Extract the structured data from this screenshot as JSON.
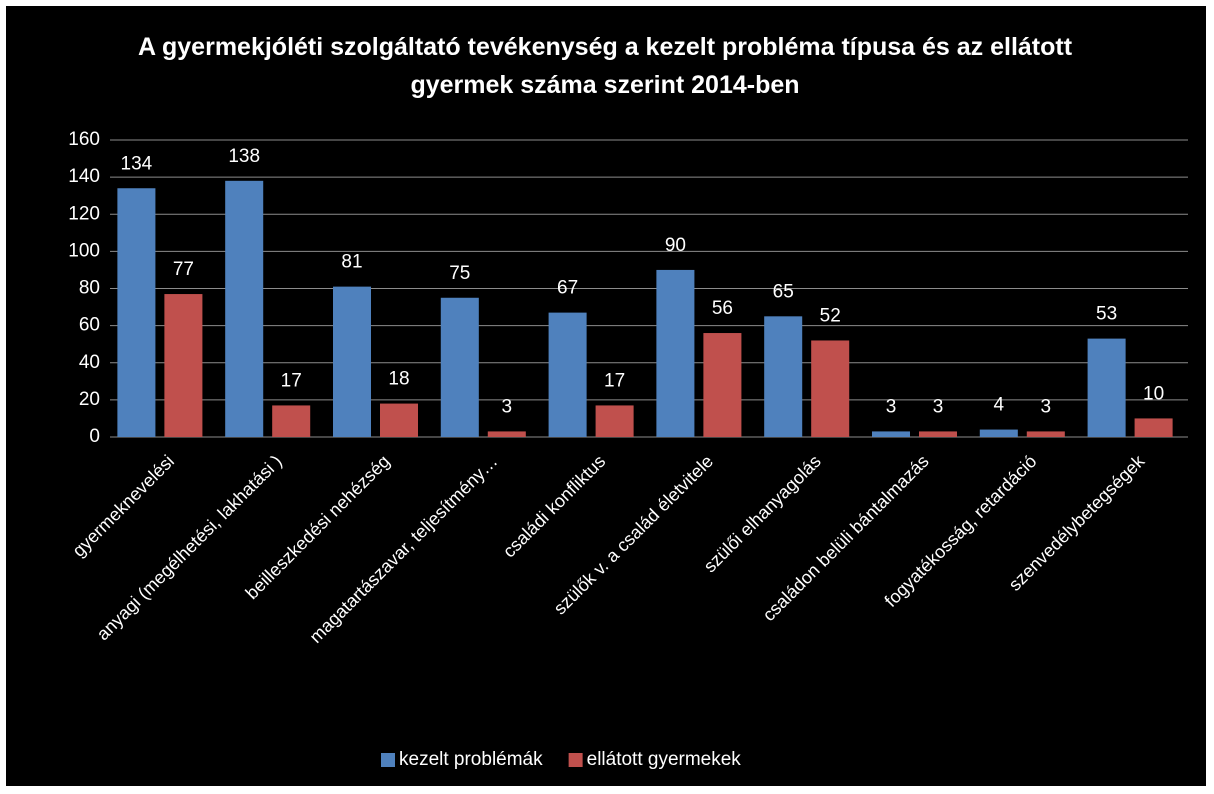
{
  "chart_data": {
    "type": "bar",
    "title": "A gyermekjóléti szolgáltató tevékenység a kezelt probléma típusa és az ellátott gyermek száma szerint  2014-ben",
    "categories": [
      "gyermeknevelési",
      "anyagi (megélhetési, lakhatási )",
      "beilleszkedési nehézség",
      "magatartászavar, teljesítmény…",
      "családi konfliktus",
      "szülők v. a család életvitele",
      "szülői elhanyagolás",
      "családon belüli bántalmazás",
      "fogyatékosság, retardáció",
      "szenvedélybetegségek"
    ],
    "series": [
      {
        "name": "kezelt problémák",
        "color": "#4f81bd",
        "values": [
          134,
          138,
          81,
          75,
          67,
          90,
          65,
          3,
          4,
          53
        ]
      },
      {
        "name": "ellátott gyermekek",
        "color": "#c0504d",
        "values": [
          77,
          17,
          18,
          3,
          17,
          56,
          52,
          3,
          3,
          10
        ]
      }
    ],
    "ylim": [
      0,
      160
    ],
    "yticks": [
      0,
      20,
      40,
      60,
      80,
      100,
      120,
      140,
      160
    ],
    "grid": true,
    "legend": "bottom"
  }
}
